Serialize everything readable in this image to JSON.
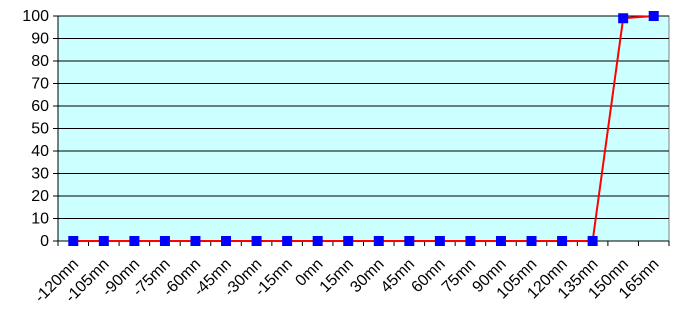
{
  "chart_data": {
    "type": "line",
    "title": "",
    "xlabel": "",
    "ylabel": "",
    "categories": [
      "-120mn",
      "-105mn",
      "-90mn",
      "-75mn",
      "-60mn",
      "-45mn",
      "-30mn",
      "-15mn",
      "0mn",
      "15mn",
      "30mn",
      "45mn",
      "60mn",
      "75mn",
      "90mn",
      "105mn",
      "120mn",
      "135mn",
      "150mn",
      "165mn"
    ],
    "y_ticks": [
      "0",
      "10",
      "20",
      "30",
      "40",
      "50",
      "60",
      "70",
      "80",
      "90",
      "100"
    ],
    "ylim": [
      0,
      100
    ],
    "grid": true,
    "legend": "none",
    "series": [
      {
        "values": [
          0,
          0,
          0,
          0,
          0,
          0,
          0,
          0,
          0,
          0,
          0,
          0,
          0,
          0,
          0,
          0,
          0,
          0,
          99,
          100
        ],
        "line_color": "#FF0000",
        "marker_color": "#0000FF"
      }
    ],
    "colors": {
      "plot_background": "#CCFFFF",
      "gridline": "#000000",
      "plot_border": "#808080"
    }
  }
}
